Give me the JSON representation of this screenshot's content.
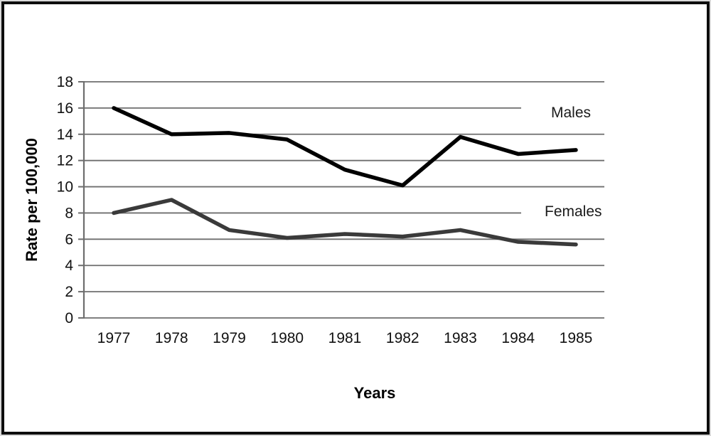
{
  "chart_data": {
    "type": "line",
    "xlabel": "Years",
    "ylabel": "Rate per 100,000",
    "categories": [
      "1977",
      "1978",
      "1979",
      "1980",
      "1981",
      "1982",
      "1983",
      "1984",
      "1985"
    ],
    "series": [
      {
        "name": "Males",
        "color": "#000000",
        "values": [
          16.0,
          14.0,
          14.1,
          13.6,
          11.3,
          10.1,
          13.8,
          12.5,
          12.8
        ]
      },
      {
        "name": "Females",
        "color": "#3a3a3a",
        "values": [
          8.0,
          9.0,
          6.7,
          6.1,
          6.4,
          6.2,
          6.7,
          5.8,
          5.6
        ]
      }
    ],
    "ylim": [
      0,
      18
    ],
    "yticks": [
      0,
      2,
      4,
      6,
      8,
      10,
      12,
      14,
      16,
      18
    ],
    "grid": "horizontal",
    "gridline_color": "#6e6e6e",
    "shortened_gridlines": [
      16,
      8
    ],
    "legend_position": "inline-right-of-lines",
    "background_color": "#ffffff",
    "frame_border_color": "#0d0d0d"
  }
}
